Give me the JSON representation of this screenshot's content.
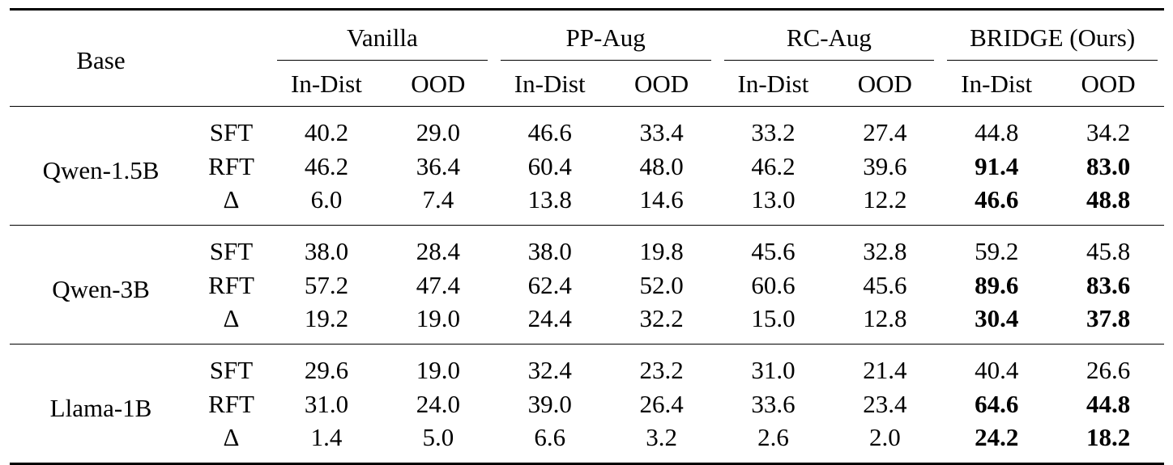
{
  "table": {
    "base_header": "Base",
    "groups": [
      "Vanilla",
      "PP-Aug",
      "RC-Aug",
      "BRIDGE (Ours)"
    ],
    "subheaders": [
      "In-Dist",
      "OOD",
      "In-Dist",
      "OOD",
      "In-Dist",
      "OOD",
      "In-Dist",
      "OOD"
    ],
    "blocks": [
      {
        "base": "Qwen-1.5B",
        "rows": [
          {
            "method": "SFT",
            "values": [
              "40.2",
              "29.0",
              "46.6",
              "33.4",
              "33.2",
              "27.4",
              "44.8",
              "34.2"
            ],
            "bold": [
              false,
              false,
              false,
              false,
              false,
              false,
              false,
              false
            ]
          },
          {
            "method": "RFT",
            "values": [
              "46.2",
              "36.4",
              "60.4",
              "48.0",
              "46.2",
              "39.6",
              "91.4",
              "83.0"
            ],
            "bold": [
              false,
              false,
              false,
              false,
              false,
              false,
              true,
              true
            ]
          },
          {
            "method": "Δ",
            "values": [
              "6.0",
              "7.4",
              "13.8",
              "14.6",
              "13.0",
              "12.2",
              "46.6",
              "48.8"
            ],
            "bold": [
              false,
              false,
              false,
              false,
              false,
              false,
              true,
              true
            ]
          }
        ]
      },
      {
        "base": "Qwen-3B",
        "rows": [
          {
            "method": "SFT",
            "values": [
              "38.0",
              "28.4",
              "38.0",
              "19.8",
              "45.6",
              "32.8",
              "59.2",
              "45.8"
            ],
            "bold": [
              false,
              false,
              false,
              false,
              false,
              false,
              false,
              false
            ]
          },
          {
            "method": "RFT",
            "values": [
              "57.2",
              "47.4",
              "62.4",
              "52.0",
              "60.6",
              "45.6",
              "89.6",
              "83.6"
            ],
            "bold": [
              false,
              false,
              false,
              false,
              false,
              false,
              true,
              true
            ]
          },
          {
            "method": "Δ",
            "values": [
              "19.2",
              "19.0",
              "24.4",
              "32.2",
              "15.0",
              "12.8",
              "30.4",
              "37.8"
            ],
            "bold": [
              false,
              false,
              false,
              false,
              false,
              false,
              true,
              true
            ]
          }
        ]
      },
      {
        "base": "Llama-1B",
        "rows": [
          {
            "method": "SFT",
            "values": [
              "29.6",
              "19.0",
              "32.4",
              "23.2",
              "31.0",
              "21.4",
              "40.4",
              "26.6"
            ],
            "bold": [
              false,
              false,
              false,
              false,
              false,
              false,
              false,
              false
            ]
          },
          {
            "method": "RFT",
            "values": [
              "31.0",
              "24.0",
              "39.0",
              "26.4",
              "33.6",
              "23.4",
              "64.6",
              "44.8"
            ],
            "bold": [
              false,
              false,
              false,
              false,
              false,
              false,
              true,
              true
            ]
          },
          {
            "method": "Δ",
            "values": [
              "1.4",
              "5.0",
              "6.6",
              "3.2",
              "2.6",
              "2.0",
              "24.2",
              "18.2"
            ],
            "bold": [
              false,
              false,
              false,
              false,
              false,
              false,
              true,
              true
            ]
          }
        ]
      }
    ]
  }
}
